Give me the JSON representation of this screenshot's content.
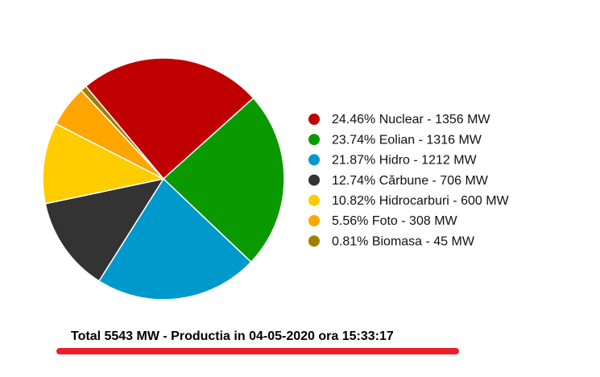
{
  "chart_data": {
    "type": "pie",
    "categories": [
      "24.46% Nuclear - 1356 MW",
      "23.74% Eolian - 1316 MW",
      "21.87% Hidro - 1212 MW",
      "12.74% Cărbune - 706 MW",
      "10.82% Hidrocarburi - 600 MW",
      "5.56% Foto - 308 MW",
      "0.81% Biomasa - 45 MW"
    ],
    "values": [
      1356,
      1316,
      1212,
      706,
      600,
      308,
      45
    ],
    "colors": [
      "#c00000",
      "#0a9a00",
      "#0099cc",
      "#333333",
      "#ffcc00",
      "#ffa500",
      "#a07f00"
    ],
    "caption": "Total 5543 MW - Productia in 04-05-2020 ora 15:33:17"
  }
}
